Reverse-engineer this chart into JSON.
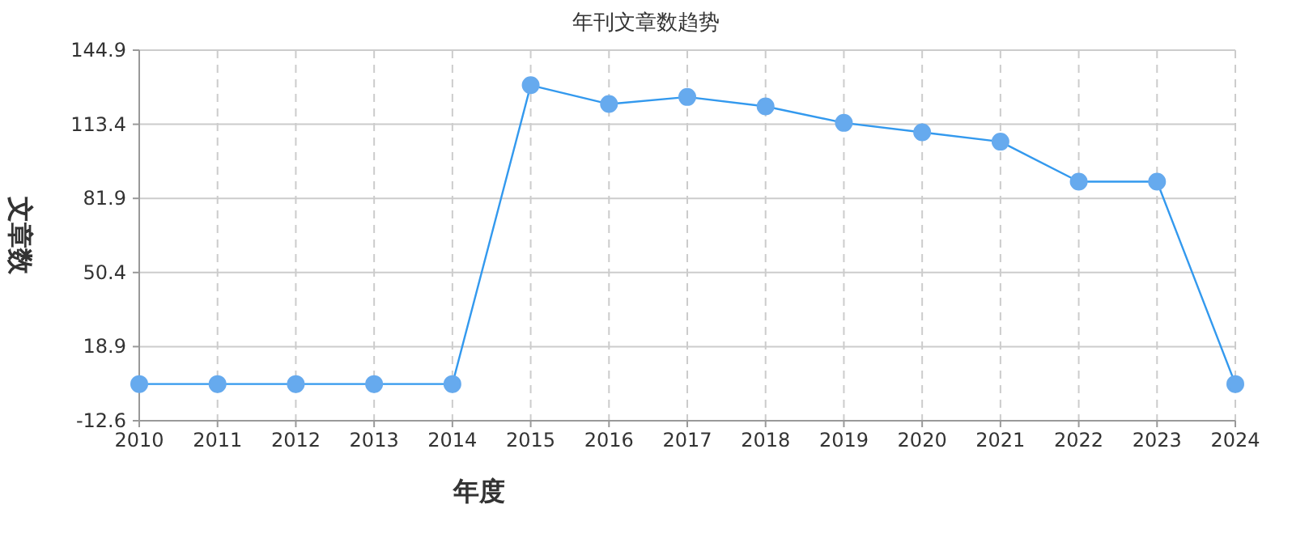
{
  "chart_data": {
    "type": "line",
    "title": "年刊文章数趋势",
    "xlabel": "年度",
    "ylabel": "文章数",
    "categories": [
      "2010",
      "2011",
      "2012",
      "2013",
      "2014",
      "2015",
      "2016",
      "2017",
      "2018",
      "2019",
      "2020",
      "2021",
      "2022",
      "2023",
      "2024"
    ],
    "series": [
      {
        "color": "#3399ee",
        "values": [
          3,
          3,
          3,
          3,
          3,
          130,
          122,
          125,
          121,
          114,
          110,
          106,
          89,
          89,
          3
        ]
      }
    ],
    "ylim": [
      -12.6,
      144.9
    ],
    "yticks": [
      -12.6,
      18.9,
      50.4,
      81.9,
      113.4,
      144.9
    ],
    "grid": true,
    "marker": "circle",
    "line_style": "solid"
  }
}
